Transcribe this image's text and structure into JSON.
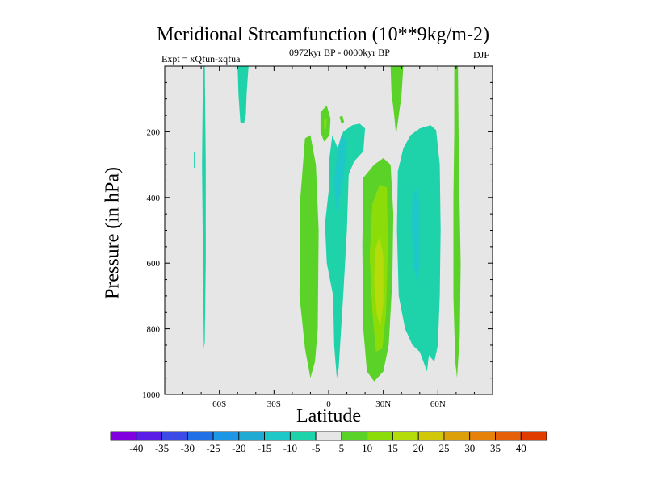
{
  "chart_data": {
    "type": "contourf",
    "title": "Meridional Streamfunction (10**9kg/m-2)",
    "subtitle": "0972kyr BP - 0000kyr BP",
    "experiment": "Expt = xQfun-xqfua",
    "season": "DJF",
    "xlabel": "Latitude",
    "ylabel": "Pressure (in hPa)",
    "xlim": [
      -90,
      90
    ],
    "ylim": [
      1000,
      0
    ],
    "xticks": [
      {
        "value": -60,
        "label": "60S"
      },
      {
        "value": -30,
        "label": "30S"
      },
      {
        "value": 0,
        "label": "0"
      },
      {
        "value": 30,
        "label": "30N"
      },
      {
        "value": 60,
        "label": "60N"
      }
    ],
    "yticks": [
      {
        "value": 200,
        "label": "200"
      },
      {
        "value": 400,
        "label": "400"
      },
      {
        "value": 600,
        "label": "600"
      },
      {
        "value": 800,
        "label": "800"
      },
      {
        "value": 1000,
        "label": "1000"
      }
    ],
    "colorbar": {
      "levels": [
        -40,
        -35,
        -30,
        -25,
        -20,
        -15,
        -10,
        -5,
        5,
        10,
        15,
        20,
        25,
        30,
        35,
        40
      ],
      "colors": [
        "#8000e0",
        "#5a1ee6",
        "#3c4be6",
        "#2270e6",
        "#1e96e6",
        "#1eaad2",
        "#1ec8c8",
        "#1ed2aa",
        "#e6e6e6",
        "#5ad228",
        "#8cdc0a",
        "#b4dc0a",
        "#d2c80a",
        "#dca00a",
        "#e6820a",
        "#e6600a",
        "#e03c00"
      ]
    },
    "field_colors": {
      "background": "#e6e6e6",
      "neg5": "#1ed2aa",
      "neg10": "#1ec8c8",
      "neg15": "#1eb4d2",
      "pos5": "#5ad228",
      "pos10": "#8cdc0a",
      "pos15": "#b4dc0a"
    },
    "regions": [
      {
        "name": "neg-band-60S",
        "level": -5,
        "points": [
          [
            -69,
            0
          ],
          [
            -68,
            0
          ],
          [
            -67.5,
            300
          ],
          [
            -67.5,
            600
          ],
          [
            -68,
            840
          ],
          [
            -68.5,
            860
          ],
          [
            -69,
            600
          ],
          [
            -69.5,
            300
          ]
        ]
      },
      {
        "name": "neg-patch-72S",
        "level": -5,
        "points": [
          [
            -74,
            260
          ],
          [
            -73.5,
            260
          ],
          [
            -73.5,
            310
          ],
          [
            -74,
            310
          ]
        ]
      },
      {
        "name": "neg-tongue-45S",
        "level": -5,
        "points": [
          [
            -50,
            0
          ],
          [
            -44,
            0
          ],
          [
            -45,
            80
          ],
          [
            -45.5,
            150
          ],
          [
            -46.5,
            175
          ],
          [
            -48.5,
            170
          ],
          [
            -49.5,
            90
          ]
        ]
      },
      {
        "name": "pos-lobe-15S",
        "level": 5,
        "points": [
          [
            -13,
            220
          ],
          [
            -10,
            210
          ],
          [
            -7,
            300
          ],
          [
            -5.5,
            500
          ],
          [
            -6,
            800
          ],
          [
            -7.5,
            900
          ],
          [
            -10,
            950
          ],
          [
            -13,
            860
          ],
          [
            -16,
            700
          ],
          [
            -15.5,
            400
          ]
        ]
      },
      {
        "name": "pos-small-eq",
        "level": 5,
        "points": [
          [
            -4.5,
            140
          ],
          [
            -1,
            120
          ],
          [
            1,
            160
          ],
          [
            0.5,
            210
          ],
          [
            -2.5,
            230
          ],
          [
            -4.5,
            200
          ]
        ]
      },
      {
        "name": "pos-inner-eq",
        "level": 10,
        "points": [
          [
            -2.5,
            165
          ],
          [
            -1,
            160
          ],
          [
            -1.5,
            195
          ],
          [
            -2.5,
            190
          ]
        ]
      },
      {
        "name": "pos-dot-7N",
        "level": 5,
        "points": [
          [
            6,
            155
          ],
          [
            7.5,
            150
          ],
          [
            8.5,
            170
          ],
          [
            7,
            175
          ]
        ]
      },
      {
        "name": "neg-lobe-eq",
        "level": -5,
        "points": [
          [
            2,
            210
          ],
          [
            5,
            250
          ],
          [
            8,
            200
          ],
          [
            13,
            180
          ],
          [
            17,
            175
          ],
          [
            20,
            190
          ],
          [
            19,
            260
          ],
          [
            14,
            290
          ],
          [
            11,
            330
          ],
          [
            10,
            500
          ],
          [
            8,
            700
          ],
          [
            5.5,
            920
          ],
          [
            4.5,
            950
          ],
          [
            3,
            850
          ],
          [
            2.5,
            700
          ],
          [
            -1,
            600
          ],
          [
            -2,
            480
          ],
          [
            0,
            380
          ],
          [
            0,
            300
          ]
        ]
      },
      {
        "name": "neg-inner-eq",
        "level": -10,
        "points": [
          [
            5,
            250
          ],
          [
            7,
            210
          ],
          [
            10,
            230
          ],
          [
            9,
            300
          ],
          [
            7,
            380
          ],
          [
            4,
            440
          ],
          [
            3,
            350
          ]
        ]
      },
      {
        "name": "pos-lobe-30N",
        "level": 5,
        "points": [
          [
            19,
            340
          ],
          [
            25,
            300
          ],
          [
            30,
            280
          ],
          [
            34,
            300
          ],
          [
            35.5,
            450
          ],
          [
            35,
            650
          ],
          [
            33,
            850
          ],
          [
            30,
            930
          ],
          [
            25,
            960
          ],
          [
            21,
            930
          ],
          [
            19,
            800
          ],
          [
            18.5,
            550
          ]
        ]
      },
      {
        "name": "pos-inner-30N",
        "level": 10,
        "points": [
          [
            24,
            420
          ],
          [
            28,
            360
          ],
          [
            32,
            370
          ],
          [
            32.5,
            550
          ],
          [
            31.5,
            750
          ],
          [
            29.5,
            860
          ],
          [
            26,
            870
          ],
          [
            24,
            750
          ],
          [
            22.5,
            580
          ]
        ]
      },
      {
        "name": "pos-core-30N",
        "level": 15,
        "points": [
          [
            25.5,
            560
          ],
          [
            28,
            520
          ],
          [
            30,
            580
          ],
          [
            30,
            720
          ],
          [
            28.5,
            790
          ],
          [
            26.5,
            760
          ],
          [
            25,
            660
          ]
        ]
      },
      {
        "name": "pos-top-35N",
        "level": 5,
        "points": [
          [
            34,
            0
          ],
          [
            41,
            0
          ],
          [
            40,
            90
          ],
          [
            38,
            170
          ],
          [
            37,
            210
          ],
          [
            36,
            150
          ],
          [
            34.5,
            80
          ]
        ]
      },
      {
        "name": "neg-lobe-50N",
        "level": -5,
        "points": [
          [
            38,
            320
          ],
          [
            41,
            250
          ],
          [
            45,
            210
          ],
          [
            50,
            190
          ],
          [
            56,
            180
          ],
          [
            59,
            195
          ],
          [
            61,
            300
          ],
          [
            61.5,
            500
          ],
          [
            61,
            700
          ],
          [
            60,
            850
          ],
          [
            58,
            900
          ],
          [
            55,
            880
          ],
          [
            54,
            930
          ],
          [
            52,
            900
          ],
          [
            50,
            870
          ],
          [
            46,
            850
          ],
          [
            42,
            800
          ],
          [
            38.5,
            700
          ],
          [
            37.5,
            500
          ]
        ]
      },
      {
        "name": "neg-inner-50N",
        "level": -10,
        "points": [
          [
            46,
            400
          ],
          [
            48,
            370
          ],
          [
            50,
            420
          ],
          [
            50,
            600
          ],
          [
            48.5,
            660
          ],
          [
            46.5,
            600
          ],
          [
            45.5,
            480
          ]
        ]
      },
      {
        "name": "pos-band-70N",
        "level": 5,
        "points": [
          [
            69,
            0
          ],
          [
            71,
            0
          ],
          [
            71.5,
            300
          ],
          [
            72.5,
            600
          ],
          [
            72,
            820
          ],
          [
            70.5,
            950
          ],
          [
            69.5,
            900
          ],
          [
            68.5,
            700
          ],
          [
            68.5,
            400
          ],
          [
            69,
            200
          ]
        ]
      }
    ]
  }
}
